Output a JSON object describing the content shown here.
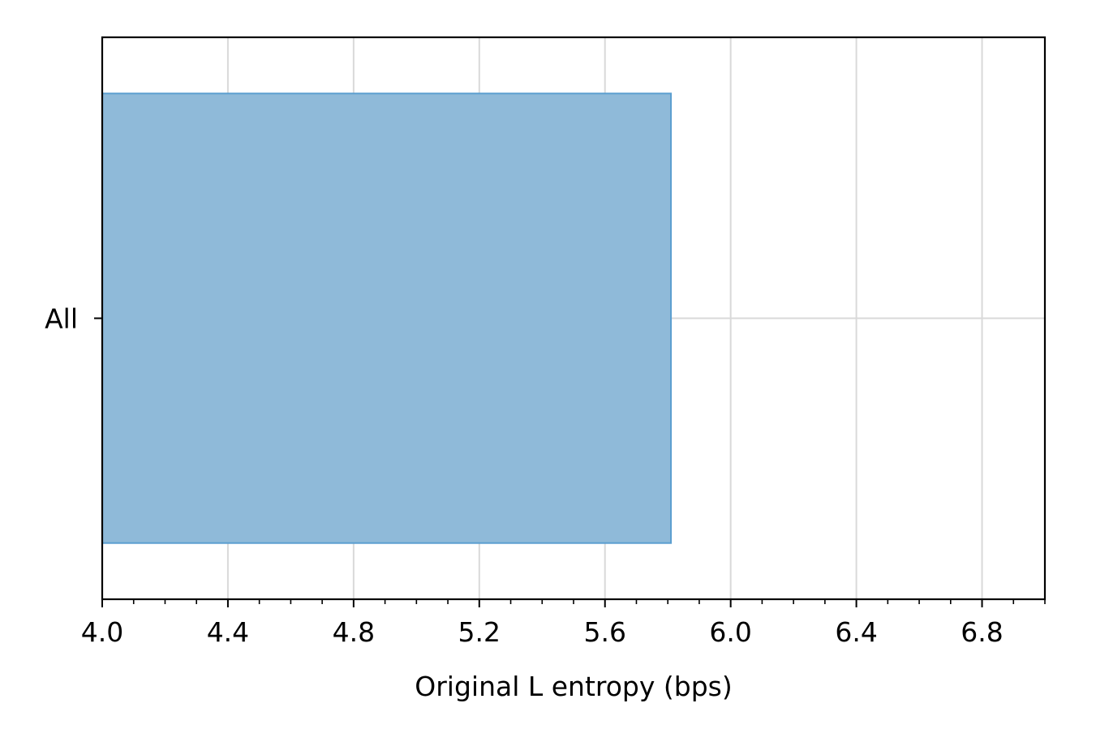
{
  "chart_data": {
    "type": "bar",
    "orientation": "horizontal",
    "categories": [
      "All"
    ],
    "values": [
      5.81
    ],
    "xlabel": "Original L entropy (bps)",
    "ylabel": "",
    "xlim": [
      4.0,
      7.0
    ],
    "xticks": [
      4.0,
      4.4,
      4.8,
      5.2,
      5.6,
      6.0,
      6.4,
      6.8
    ],
    "xtick_labels": [
      "4.0",
      "4.4",
      "4.8",
      "5.2",
      "5.6",
      "6.0",
      "6.4",
      "6.8"
    ],
    "minor_tick_step": 0.1,
    "grid": true,
    "bar_color": "#8fbad9",
    "bar_edge_color": "#5b9ed0",
    "grid_color": "#d9d9d9"
  }
}
